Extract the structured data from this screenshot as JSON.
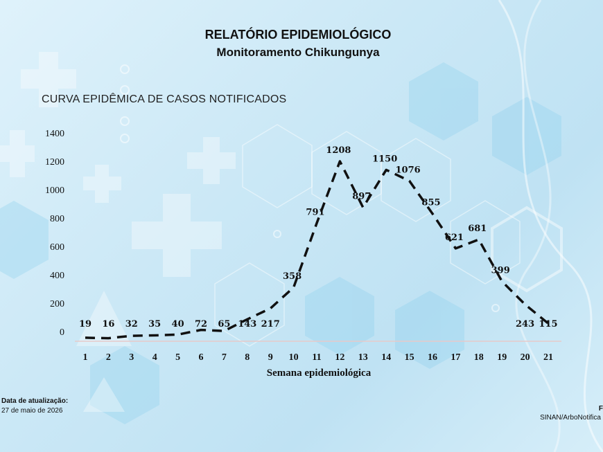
{
  "header": {
    "title": "RELATÓRIO EPIDEMIOLÓGICO",
    "subtitle": "Monitoramento Chikungunya"
  },
  "chart_heading": "CURVA EPIDÊMICA DE CASOS NOTIFICADOS",
  "chart_data": {
    "type": "line",
    "title": "CURVA EPIDÊMICA DE CASOS NOTIFICADOS",
    "xlabel": "Semana epidemiológica",
    "ylabel": "",
    "x": [
      1,
      2,
      3,
      4,
      5,
      6,
      7,
      8,
      9,
      10,
      11,
      12,
      13,
      14,
      15,
      16,
      17,
      18,
      19,
      20,
      21
    ],
    "values": [
      19,
      16,
      32,
      35,
      40,
      72,
      65,
      143,
      217,
      358,
      791,
      1208,
      897,
      1150,
      1076,
      855,
      621,
      681,
      399,
      243,
      115
    ],
    "yticks": [
      0,
      200,
      400,
      600,
      800,
      1000,
      1200,
      1400
    ],
    "ylim": [
      0,
      1400
    ],
    "grid": false,
    "line_style": "dashed",
    "line_color": "#111111"
  },
  "footer": {
    "update_label": "Data de atualização:",
    "update_date": "27 de maio de 2026",
    "source_label": "F",
    "source_text": "SINAN/ArboNotifica -"
  },
  "colors": {
    "background": "#cfe9f6",
    "text": "#111111"
  }
}
